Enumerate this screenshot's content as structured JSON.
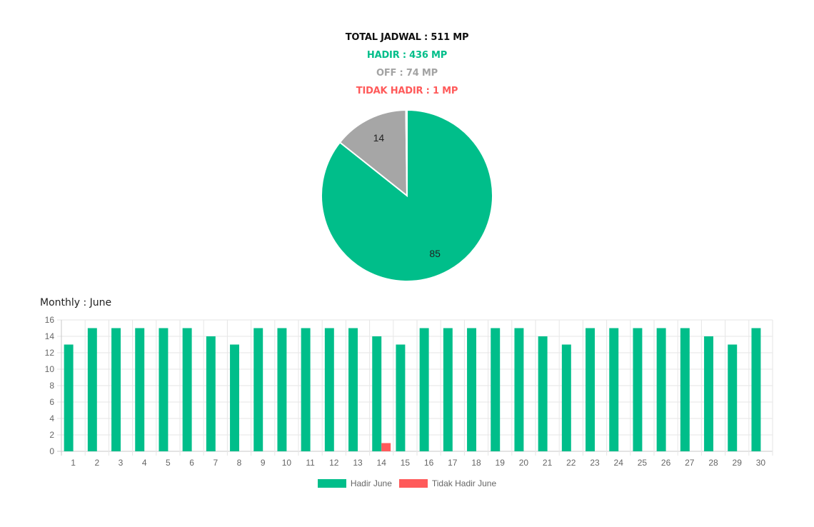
{
  "summary": {
    "total": "TOTAL JADWAL : 511 MP",
    "hadir": "HADIR : 436 MP",
    "off": "OFF : 74 MP",
    "tidak_hadir": "TIDAK HADIR : 1 MP"
  },
  "colors": {
    "hadir": "#00be8a",
    "off": "#a6a6a6",
    "tidak_hadir": "#ff5a5a",
    "grid": "#e6e6e6",
    "tick_text": "#666666"
  },
  "monthly_title": "Monthly : June",
  "chart_data": [
    {
      "type": "pie",
      "slices": [
        {
          "category": "hadir",
          "value": 85,
          "label": "85"
        },
        {
          "category": "off",
          "value": 14,
          "label": "14"
        },
        {
          "category": "tidak_hadir",
          "value": 0.2,
          "label": ""
        }
      ]
    },
    {
      "type": "bar",
      "title": "Monthly : June",
      "categories": [
        "1",
        "2",
        "3",
        "4",
        "5",
        "6",
        "7",
        "8",
        "9",
        "10",
        "11",
        "12",
        "13",
        "14",
        "15",
        "16",
        "17",
        "18",
        "19",
        "20",
        "21",
        "22",
        "23",
        "24",
        "25",
        "26",
        "27",
        "28",
        "29",
        "30"
      ],
      "series": [
        {
          "name": "Hadir June",
          "color_key": "hadir",
          "values": [
            13,
            15,
            15,
            15,
            15,
            15,
            14,
            13,
            15,
            15,
            15,
            15,
            15,
            14,
            13,
            15,
            15,
            15,
            15,
            15,
            14,
            13,
            15,
            15,
            15,
            15,
            15,
            14,
            13,
            15
          ]
        },
        {
          "name": "Tidak Hadir June",
          "color_key": "tidak_hadir",
          "values": [
            0,
            0,
            0,
            0,
            0,
            0,
            0,
            0,
            0,
            0,
            0,
            0,
            0,
            1,
            0,
            0,
            0,
            0,
            0,
            0,
            0,
            0,
            0,
            0,
            0,
            0,
            0,
            0,
            0,
            0
          ]
        }
      ],
      "ylim": [
        0,
        16
      ],
      "yticks": [
        0,
        2,
        4,
        6,
        8,
        10,
        12,
        14,
        16
      ],
      "grid": true,
      "legend": "bottom"
    }
  ]
}
